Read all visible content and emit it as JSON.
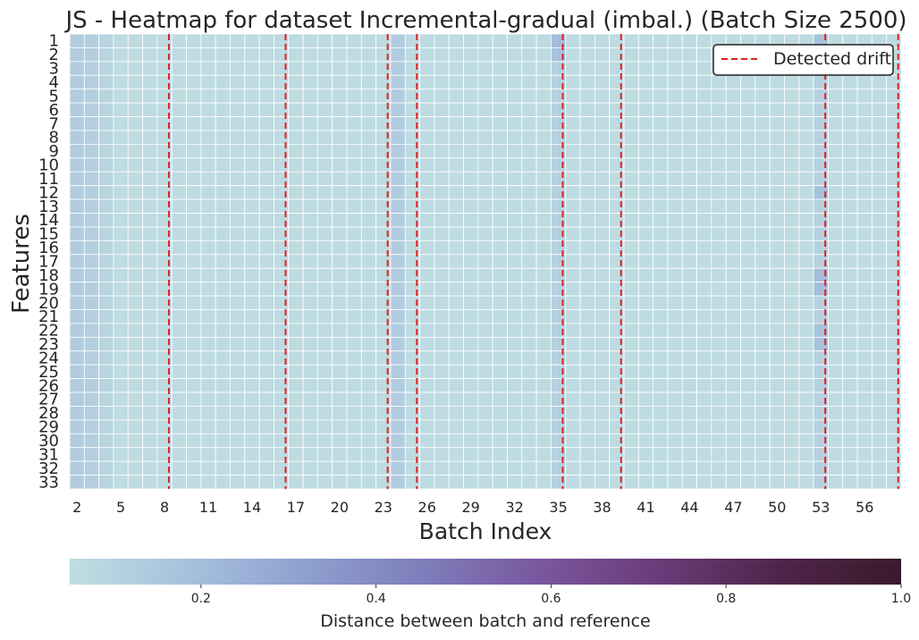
{
  "chart_data": {
    "type": "heatmap",
    "title": "JS - Heatmap for dataset Incremental-gradual (imbal.) (Batch Size 2500)",
    "xlabel": "Batch Index",
    "ylabel": "Features",
    "x_first_batch": 2,
    "x_last_batch": 58,
    "x_tick_labels": [
      "2",
      "5",
      "8",
      "11",
      "14",
      "17",
      "20",
      "23",
      "26",
      "29",
      "32",
      "35",
      "38",
      "41",
      "44",
      "47",
      "50",
      "53",
      "56"
    ],
    "y_tick_labels": [
      "1",
      "2",
      "3",
      "4",
      "5",
      "6",
      "7",
      "8",
      "9",
      "10",
      "11",
      "12",
      "13",
      "14",
      "15",
      "16",
      "17",
      "18",
      "19",
      "20",
      "21",
      "22",
      "23",
      "24",
      "25",
      "26",
      "27",
      "28",
      "29",
      "30",
      "31",
      "32",
      "33"
    ],
    "base_value": 0.06,
    "high_columns": [
      {
        "batch": 2,
        "value": 0.13
      },
      {
        "batch": 3,
        "value": 0.12
      },
      {
        "batch": 4,
        "value": 0.09
      },
      {
        "batch": 24,
        "value": 0.13
      },
      {
        "batch": 35,
        "value": 0.11
      },
      {
        "batch": 53,
        "value": 0.11
      }
    ],
    "cell_overrides": [
      {
        "feature": 1,
        "batch": 35,
        "value": 0.2
      },
      {
        "feature": 1,
        "batch": 53,
        "value": 0.18
      },
      {
        "feature": 2,
        "batch": 35,
        "value": 0.18
      },
      {
        "feature": 12,
        "batch": 53,
        "value": 0.18
      },
      {
        "feature": 18,
        "batch": 53,
        "value": 0.2
      },
      {
        "feature": 19,
        "batch": 53,
        "value": 0.2
      },
      {
        "feature": 22,
        "batch": 53,
        "value": 0.18
      },
      {
        "feature": 23,
        "batch": 53,
        "value": 0.18
      }
    ],
    "detected_drift_batches": [
      8.3,
      16.3,
      23.3,
      25.3,
      35.3,
      39.3,
      53.3,
      58.3
    ],
    "legend": {
      "label": "Detected drift",
      "position": "upper right"
    },
    "colorbar": {
      "label": "Distance between batch and reference",
      "range": [
        0.05,
        1.0
      ],
      "tick_labels": [
        "0.2",
        "0.4",
        "0.6",
        "0.8",
        "1.0"
      ],
      "tick_values": [
        0.2,
        0.4,
        0.6,
        0.8,
        1.0
      ],
      "orientation": "horizontal"
    },
    "colors": {
      "drift_line": "#e02020",
      "gridline": "#ffffff",
      "colormap": [
        "#c0dde2",
        "#a6c1dc",
        "#8e9fcf",
        "#7d7dba",
        "#7a559d",
        "#6a3a77",
        "#4f2449",
        "#3a1a2c"
      ]
    }
  }
}
